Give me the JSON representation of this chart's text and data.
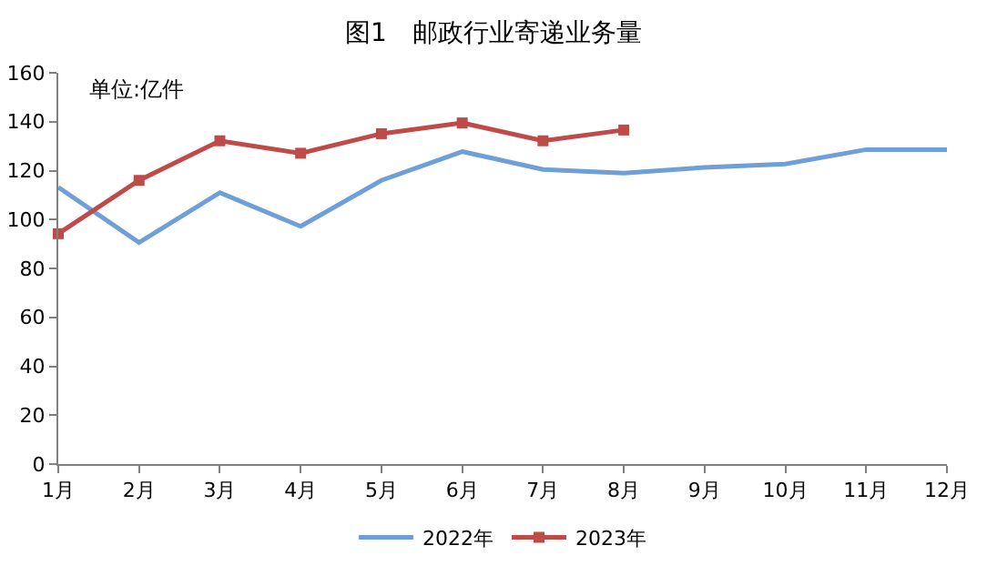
{
  "chart_data": {
    "type": "line",
    "title": "图1　邮政行业寄递业务量",
    "ylabel": "单位:亿件",
    "categories": [
      "1月",
      "2月",
      "3月",
      "4月",
      "5月",
      "6月",
      "7月",
      "8月",
      "9月",
      "10月",
      "11月",
      "12月"
    ],
    "series": [
      {
        "name": "2022年",
        "color": "#6f9fd8",
        "marker": "none",
        "values": [
          113.2,
          90.6,
          111,
          97.2,
          116,
          127.8,
          120.5,
          119,
          121.3,
          122.7,
          128.6,
          128.6
        ]
      },
      {
        "name": "2023年",
        "color": "#be4b48",
        "marker": "square",
        "values": [
          94.2,
          116,
          132.2,
          127.1,
          135.1,
          139.5,
          132.2,
          136.6,
          null,
          null,
          null,
          null
        ]
      }
    ],
    "ylim": [
      0,
      160
    ],
    "yticks": [
      0,
      20,
      40,
      60,
      80,
      100,
      120,
      140,
      160
    ],
    "grid": false,
    "legend": "bottom",
    "line_style": "solid"
  }
}
